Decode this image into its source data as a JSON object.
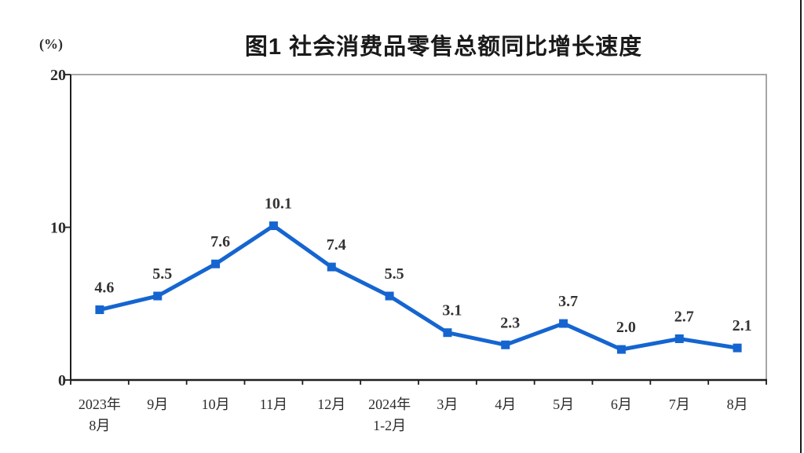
{
  "chart_data": {
    "type": "line",
    "title": "图1 社会消费品零售总额同比增长速度",
    "unit_label": "(%)",
    "categories": [
      [
        "2023年",
        "8月"
      ],
      [
        "9月"
      ],
      [
        "10月"
      ],
      [
        "11月"
      ],
      [
        "12月"
      ],
      [
        "2024年",
        "1-2月"
      ],
      [
        "3月"
      ],
      [
        "4月"
      ],
      [
        "5月"
      ],
      [
        "6月"
      ],
      [
        "7月"
      ],
      [
        "8月"
      ]
    ],
    "values": [
      4.6,
      5.5,
      7.6,
      10.1,
      7.4,
      5.5,
      3.1,
      2.3,
      3.7,
      2.0,
      2.7,
      2.1
    ],
    "y_ticks": [
      0,
      10,
      20
    ],
    "ylim": [
      0,
      20
    ],
    "grid": false,
    "legend": "none",
    "line_color": "#1565d0",
    "marker_shape": "square",
    "data_label_color": "#333333",
    "axis_color": "#1f1f1f",
    "frame_color": "#a6a6a6"
  },
  "page": {
    "edge_line_color": "#1a1a1a"
  }
}
